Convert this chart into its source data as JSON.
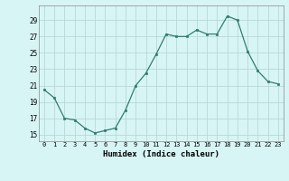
{
  "x": [
    0,
    1,
    2,
    3,
    4,
    5,
    6,
    7,
    8,
    9,
    10,
    11,
    12,
    13,
    14,
    15,
    16,
    17,
    18,
    19,
    20,
    21,
    22,
    23
  ],
  "y": [
    20.5,
    19.5,
    17.0,
    16.8,
    15.8,
    15.2,
    15.5,
    15.8,
    18.0,
    21.0,
    22.5,
    24.8,
    27.3,
    27.0,
    27.0,
    27.8,
    27.3,
    27.3,
    29.5,
    29.0,
    25.2,
    22.8,
    21.5,
    21.2
  ],
  "xlabel": "Humidex (Indice chaleur)",
  "bg_color": "#d8f5f5",
  "line_color": "#2e7d6e",
  "marker_color": "#2e7d6e",
  "grid_color": "#b8d8d8",
  "yticks": [
    15,
    17,
    19,
    21,
    23,
    25,
    27,
    29
  ],
  "xticks": [
    0,
    1,
    2,
    3,
    4,
    5,
    6,
    7,
    8,
    9,
    10,
    11,
    12,
    13,
    14,
    15,
    16,
    17,
    18,
    19,
    20,
    21,
    22,
    23
  ],
  "ylim": [
    14.2,
    30.8
  ],
  "xlim": [
    -0.5,
    23.5
  ]
}
